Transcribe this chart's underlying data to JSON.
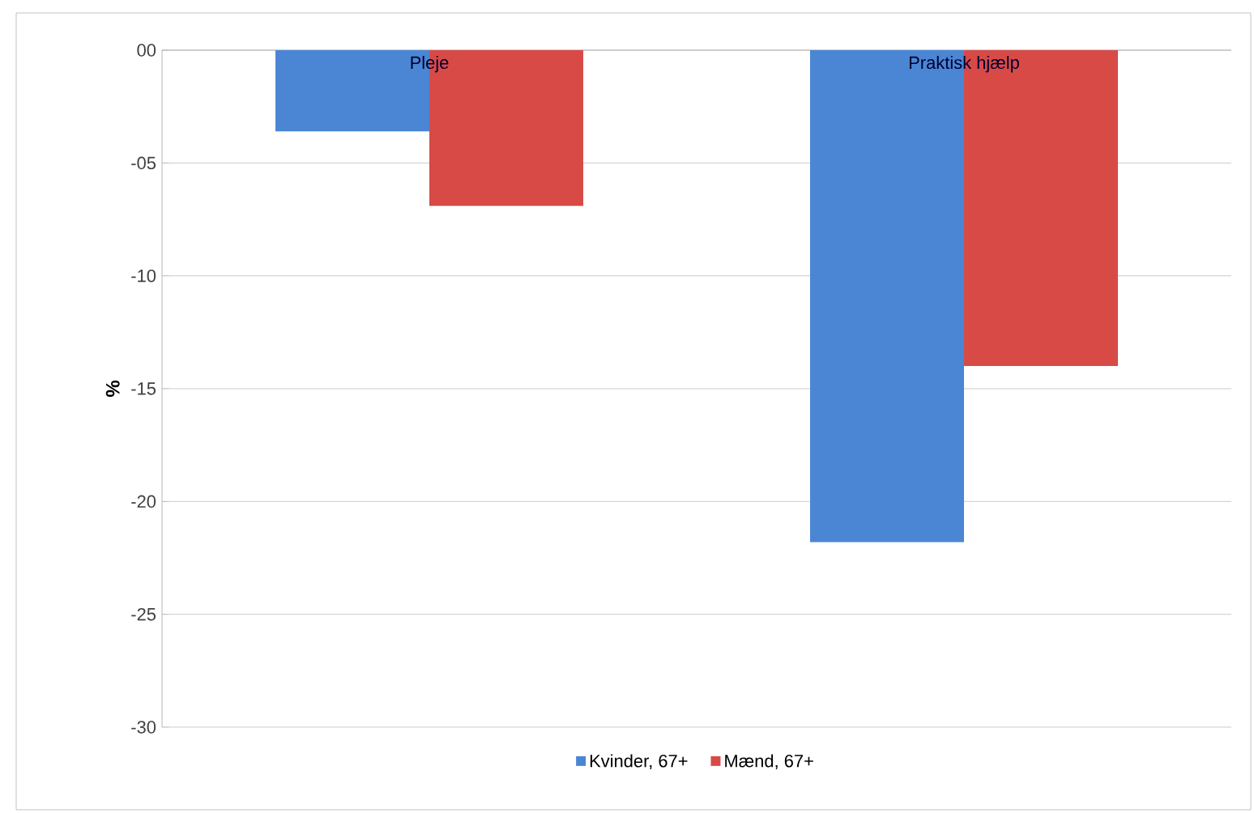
{
  "chart_data": {
    "type": "bar",
    "ylabel": "%",
    "categories": [
      "Pleje",
      "Praktisk hjælp"
    ],
    "series": [
      {
        "name": "Kvinder, 67+",
        "color": "#4a86d4",
        "values": [
          -3.6,
          -21.8
        ]
      },
      {
        "name": "Mænd, 67+",
        "color": "#d84a46",
        "values": [
          -6.9,
          -14.0
        ]
      }
    ],
    "ylim": [
      -30,
      0
    ],
    "yticks": [
      {
        "value": 0,
        "label": "00"
      },
      {
        "value": -5,
        "label": "-05"
      },
      -10,
      -15,
      -20,
      -25,
      -30
    ],
    "grid": "y",
    "legend": "bottom"
  }
}
